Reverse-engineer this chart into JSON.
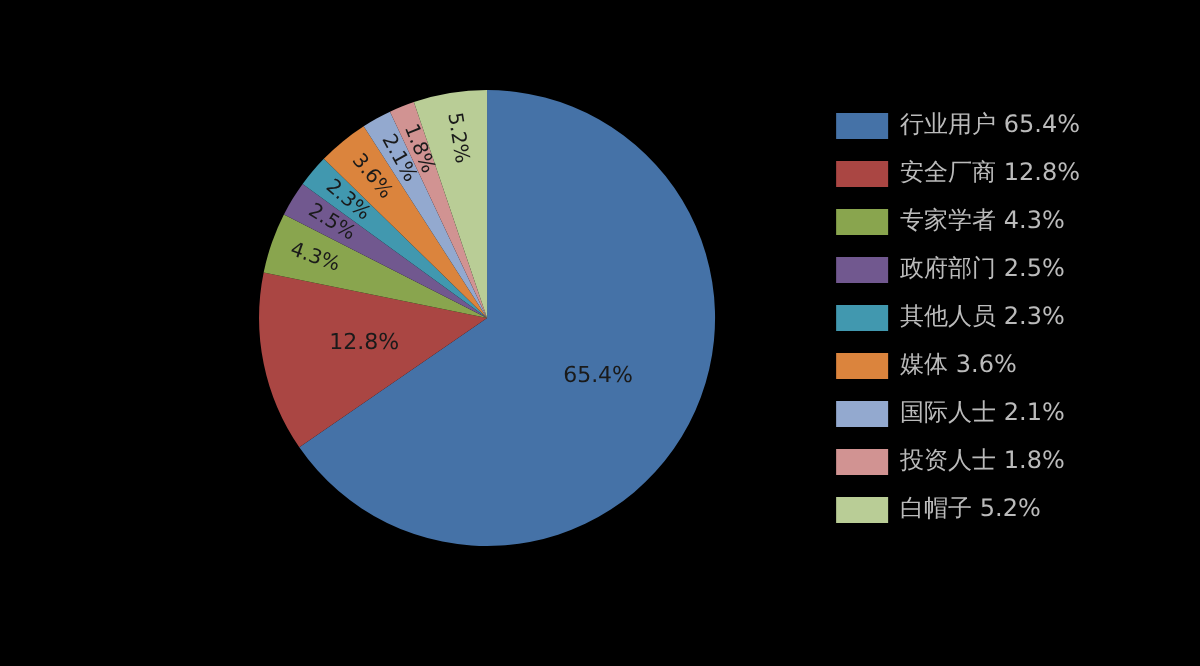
{
  "chart_data": {
    "type": "pie",
    "categories": [
      "行业用户 65.4%",
      "安全厂商 12.8%",
      "专家学者 4.3%",
      "政府部门 2.5%",
      "其他人员 2.3%",
      "媒体 3.6%",
      "国际人士 2.1%",
      "投资人士 1.8%",
      "白帽子 5.2%"
    ],
    "values": [
      65.4,
      12.8,
      4.3,
      2.5,
      2.3,
      3.6,
      2.1,
      1.8,
      5.2
    ],
    "colors": [
      "#4572a7",
      "#aa4643",
      "#89a54e",
      "#71588f",
      "#4198af",
      "#db843d",
      "#93a9cf",
      "#d19392",
      "#b9cd96"
    ],
    "value_labels": [
      "65.4%",
      "12.8%",
      "4.3%",
      "2.5%",
      "2.3%",
      "3.6%",
      "2.1%",
      "1.8%",
      "5.2%"
    ],
    "legend": "right"
  }
}
